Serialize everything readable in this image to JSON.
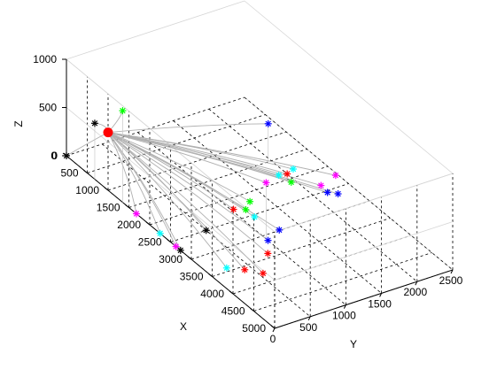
{
  "chart_data": {
    "type": "scatter",
    "title": "",
    "xlabel": "X",
    "ylabel": "Y",
    "zlabel": "Z",
    "x_ticks": [
      "0",
      "500",
      "1000",
      "1500",
      "2000",
      "2500",
      "3000",
      "3500",
      "4000",
      "4500",
      "5000"
    ],
    "y_ticks": [
      "0",
      "500",
      "1000",
      "1500",
      "2000",
      "2500"
    ],
    "z_ticks": [
      "0",
      "500",
      "1000"
    ],
    "xlim": [
      0,
      5000
    ],
    "ylim": [
      0,
      2500
    ],
    "zlim": [
      0,
      1000
    ],
    "grid": true,
    "sink": {
      "x": 1000,
      "y": 0,
      "z": 0,
      "color": "#ff0000"
    },
    "points": [
      {
        "x": 0,
        "y": 0,
        "z": 0,
        "color": "#000000"
      },
      {
        "x": 680,
        "y": 0,
        "z": 580,
        "color": "#000000"
      },
      {
        "x": 1350,
        "y": 0,
        "z": 950,
        "color": "#00ff00"
      },
      {
        "x": 1680,
        "y": 0,
        "z": 0,
        "color": "#ff00ff"
      },
      {
        "x": 2250,
        "y": 0,
        "z": 0,
        "color": "#00ffff"
      },
      {
        "x": 2630,
        "y": 0,
        "z": 0,
        "color": "#ff00ff"
      },
      {
        "x": 2740,
        "y": 0,
        "z": 0,
        "color": "#000000"
      },
      {
        "x": 3420,
        "y": 250,
        "z": 0,
        "color": "#00ffff"
      },
      {
        "x": 3580,
        "y": 410,
        "z": 0,
        "color": "#ff0000"
      },
      {
        "x": 3780,
        "y": 550,
        "z": 0,
        "color": "#ff0000"
      },
      {
        "x": 2500,
        "y": 500,
        "z": 0,
        "color": "#000000"
      },
      {
        "x": 2250,
        "y": 1030,
        "z": 0,
        "color": "#ff0000"
      },
      {
        "x": 2340,
        "y": 1150,
        "z": 0,
        "color": "#00ff00"
      },
      {
        "x": 2550,
        "y": 1150,
        "z": 0,
        "color": "#00ffff"
      },
      {
        "x": 2200,
        "y": 1290,
        "z": 0,
        "color": "#00ff00"
      },
      {
        "x": 3400,
        "y": 840,
        "z": 0,
        "color": "#ff0000"
      },
      {
        "x": 3130,
        "y": 1000,
        "z": 0,
        "color": "#0000ff"
      },
      {
        "x": 2990,
        "y": 1240,
        "z": 0,
        "color": "#0000ff"
      },
      {
        "x": 3120,
        "y": 980,
        "z": 600,
        "color": "#ff00ff"
      },
      {
        "x": 1510,
        "y": 1950,
        "z": 400,
        "color": "#0000ff"
      },
      {
        "x": 1850,
        "y": 1900,
        "z": 0,
        "color": "#00ffff"
      },
      {
        "x": 1820,
        "y": 2120,
        "z": 0,
        "color": "#00ffff"
      },
      {
        "x": 2080,
        "y": 1940,
        "z": 0,
        "color": "#00ff00"
      },
      {
        "x": 1880,
        "y": 2000,
        "z": 0,
        "color": "#ff0000"
      },
      {
        "x": 2240,
        "y": 2470,
        "z": 0,
        "color": "#ff00ff"
      },
      {
        "x": 2540,
        "y": 2180,
        "z": 0,
        "color": "#0000ff"
      },
      {
        "x": 2640,
        "y": 2270,
        "z": 0,
        "color": "#0000ff"
      },
      {
        "x": 2350,
        "y": 2200,
        "z": 0,
        "color": "#ff00ff"
      }
    ]
  }
}
